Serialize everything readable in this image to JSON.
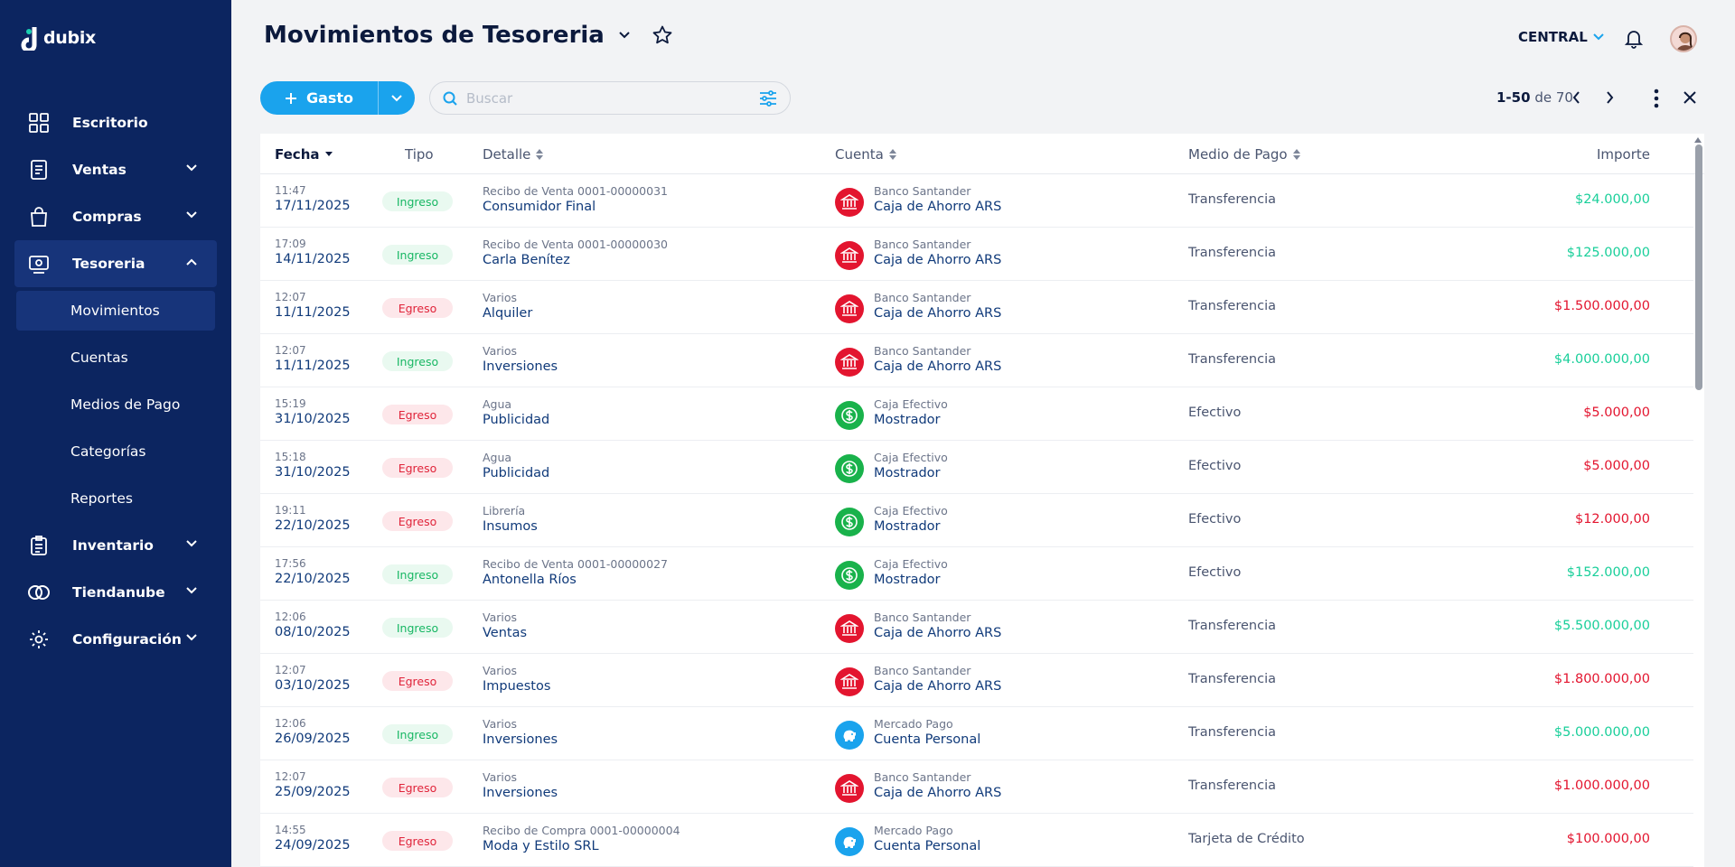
{
  "app": {
    "name": "dubix"
  },
  "sidebar": {
    "items": [
      {
        "label": "Escritorio"
      },
      {
        "label": "Ventas"
      },
      {
        "label": "Compras"
      },
      {
        "label": "Tesoreria"
      },
      {
        "label": "Inventario"
      },
      {
        "label": "Tiendanube"
      },
      {
        "label": "Configuración"
      }
    ],
    "sub_items": [
      {
        "label": "Movimientos"
      },
      {
        "label": "Cuentas"
      },
      {
        "label": "Medios de Pago"
      },
      {
        "label": "Categorías"
      },
      {
        "label": "Reportes"
      }
    ]
  },
  "header": {
    "title": "Movimientos de Tesoreria",
    "branch": "CENTRAL"
  },
  "toolbar": {
    "add_label": "Gasto",
    "search_placeholder": "Buscar"
  },
  "pager": {
    "range": "1-50",
    "of_label": "de 70"
  },
  "table": {
    "columns": {
      "fecha": "Fecha",
      "tipo": "Tipo",
      "detalle": "Detalle",
      "cuenta": "Cuenta",
      "medio": "Medio de Pago",
      "importe": "Importe"
    },
    "rows": [
      {
        "time": "11:47",
        "date": "17/11/2025",
        "tipo": "Ingreso",
        "det_sub": "Recibo de Venta 0001-00000031",
        "det_main": "Consumidor Final",
        "acc_sub": "Banco Santander",
        "acc_main": "Caja de Ahorro ARS",
        "acc_icon": "bank-icon",
        "medio": "Transferencia",
        "importe": "$24.000,00"
      },
      {
        "time": "17:09",
        "date": "14/11/2025",
        "tipo": "Ingreso",
        "det_sub": "Recibo de Venta 0001-00000030",
        "det_main": "Carla Benítez",
        "acc_sub": "Banco Santander",
        "acc_main": "Caja de Ahorro ARS",
        "acc_icon": "bank-icon",
        "medio": "Transferencia",
        "importe": "$125.000,00"
      },
      {
        "time": "12:07",
        "date": "11/11/2025",
        "tipo": "Egreso",
        "det_sub": "Varios",
        "det_main": "Alquiler",
        "acc_sub": "Banco Santander",
        "acc_main": "Caja de Ahorro ARS",
        "acc_icon": "bank-icon",
        "medio": "Transferencia",
        "importe": "$1.500.000,00"
      },
      {
        "time": "12:07",
        "date": "11/11/2025",
        "tipo": "Ingreso",
        "det_sub": "Varios",
        "det_main": "Inversiones",
        "acc_sub": "Banco Santander",
        "acc_main": "Caja de Ahorro ARS",
        "acc_icon": "bank-icon",
        "medio": "Transferencia",
        "importe": "$4.000.000,00"
      },
      {
        "time": "15:19",
        "date": "31/10/2025",
        "tipo": "Egreso",
        "det_sub": "Agua",
        "det_main": "Publicidad",
        "acc_sub": "Caja Efectivo",
        "acc_main": "Mostrador",
        "acc_icon": "cash-icon",
        "medio": "Efectivo",
        "importe": "$5.000,00"
      },
      {
        "time": "15:18",
        "date": "31/10/2025",
        "tipo": "Egreso",
        "det_sub": "Agua",
        "det_main": "Publicidad",
        "acc_sub": "Caja Efectivo",
        "acc_main": "Mostrador",
        "acc_icon": "cash-icon",
        "medio": "Efectivo",
        "importe": "$5.000,00"
      },
      {
        "time": "19:11",
        "date": "22/10/2025",
        "tipo": "Egreso",
        "det_sub": "Librería",
        "det_main": "Insumos",
        "acc_sub": "Caja Efectivo",
        "acc_main": "Mostrador",
        "acc_icon": "cash-icon",
        "medio": "Efectivo",
        "importe": "$12.000,00"
      },
      {
        "time": "17:56",
        "date": "22/10/2025",
        "tipo": "Ingreso",
        "det_sub": "Recibo de Venta 0001-00000027",
        "det_main": "Antonella Ríos",
        "acc_sub": "Caja Efectivo",
        "acc_main": "Mostrador",
        "acc_icon": "cash-icon",
        "medio": "Efectivo",
        "importe": "$152.000,00"
      },
      {
        "time": "12:06",
        "date": "08/10/2025",
        "tipo": "Ingreso",
        "det_sub": "Varios",
        "det_main": "Ventas",
        "acc_sub": "Banco Santander",
        "acc_main": "Caja de Ahorro ARS",
        "acc_icon": "bank-icon",
        "medio": "Transferencia",
        "importe": "$5.500.000,00"
      },
      {
        "time": "12:07",
        "date": "03/10/2025",
        "tipo": "Egreso",
        "det_sub": "Varios",
        "det_main": "Impuestos",
        "acc_sub": "Banco Santander",
        "acc_main": "Caja de Ahorro ARS",
        "acc_icon": "bank-icon",
        "medio": "Transferencia",
        "importe": "$1.800.000,00"
      },
      {
        "time": "12:06",
        "date": "26/09/2025",
        "tipo": "Ingreso",
        "det_sub": "Varios",
        "det_main": "Inversiones",
        "acc_sub": "Mercado Pago",
        "acc_main": "Cuenta Personal",
        "acc_icon": "wallet-icon",
        "medio": "Transferencia",
        "importe": "$5.000.000,00"
      },
      {
        "time": "12:07",
        "date": "25/09/2025",
        "tipo": "Egreso",
        "det_sub": "Varios",
        "det_main": "Inversiones",
        "acc_sub": "Banco Santander",
        "acc_main": "Caja de Ahorro ARS",
        "acc_icon": "bank-icon",
        "medio": "Transferencia",
        "importe": "$1.000.000,00"
      },
      {
        "time": "14:55",
        "date": "24/09/2025",
        "tipo": "Egreso",
        "det_sub": "Recibo de Compra 0001-00000004",
        "det_main": "Moda y Estilo SRL",
        "acc_sub": "Mercado Pago",
        "acc_main": "Cuenta Personal",
        "acc_icon": "wallet-icon",
        "medio": "Tarjeta de Crédito",
        "importe": "$100.000,00"
      }
    ]
  },
  "colors": {
    "sidebar_bg": "#0c2560",
    "accent": "#1aa3ed",
    "income_text": "#18b764",
    "expense_text": "#e0243a",
    "bank_icon_bg": "#e3152f",
    "cash_icon_bg": "#19b24b",
    "wallet_icon_bg": "#1aa3ed"
  }
}
